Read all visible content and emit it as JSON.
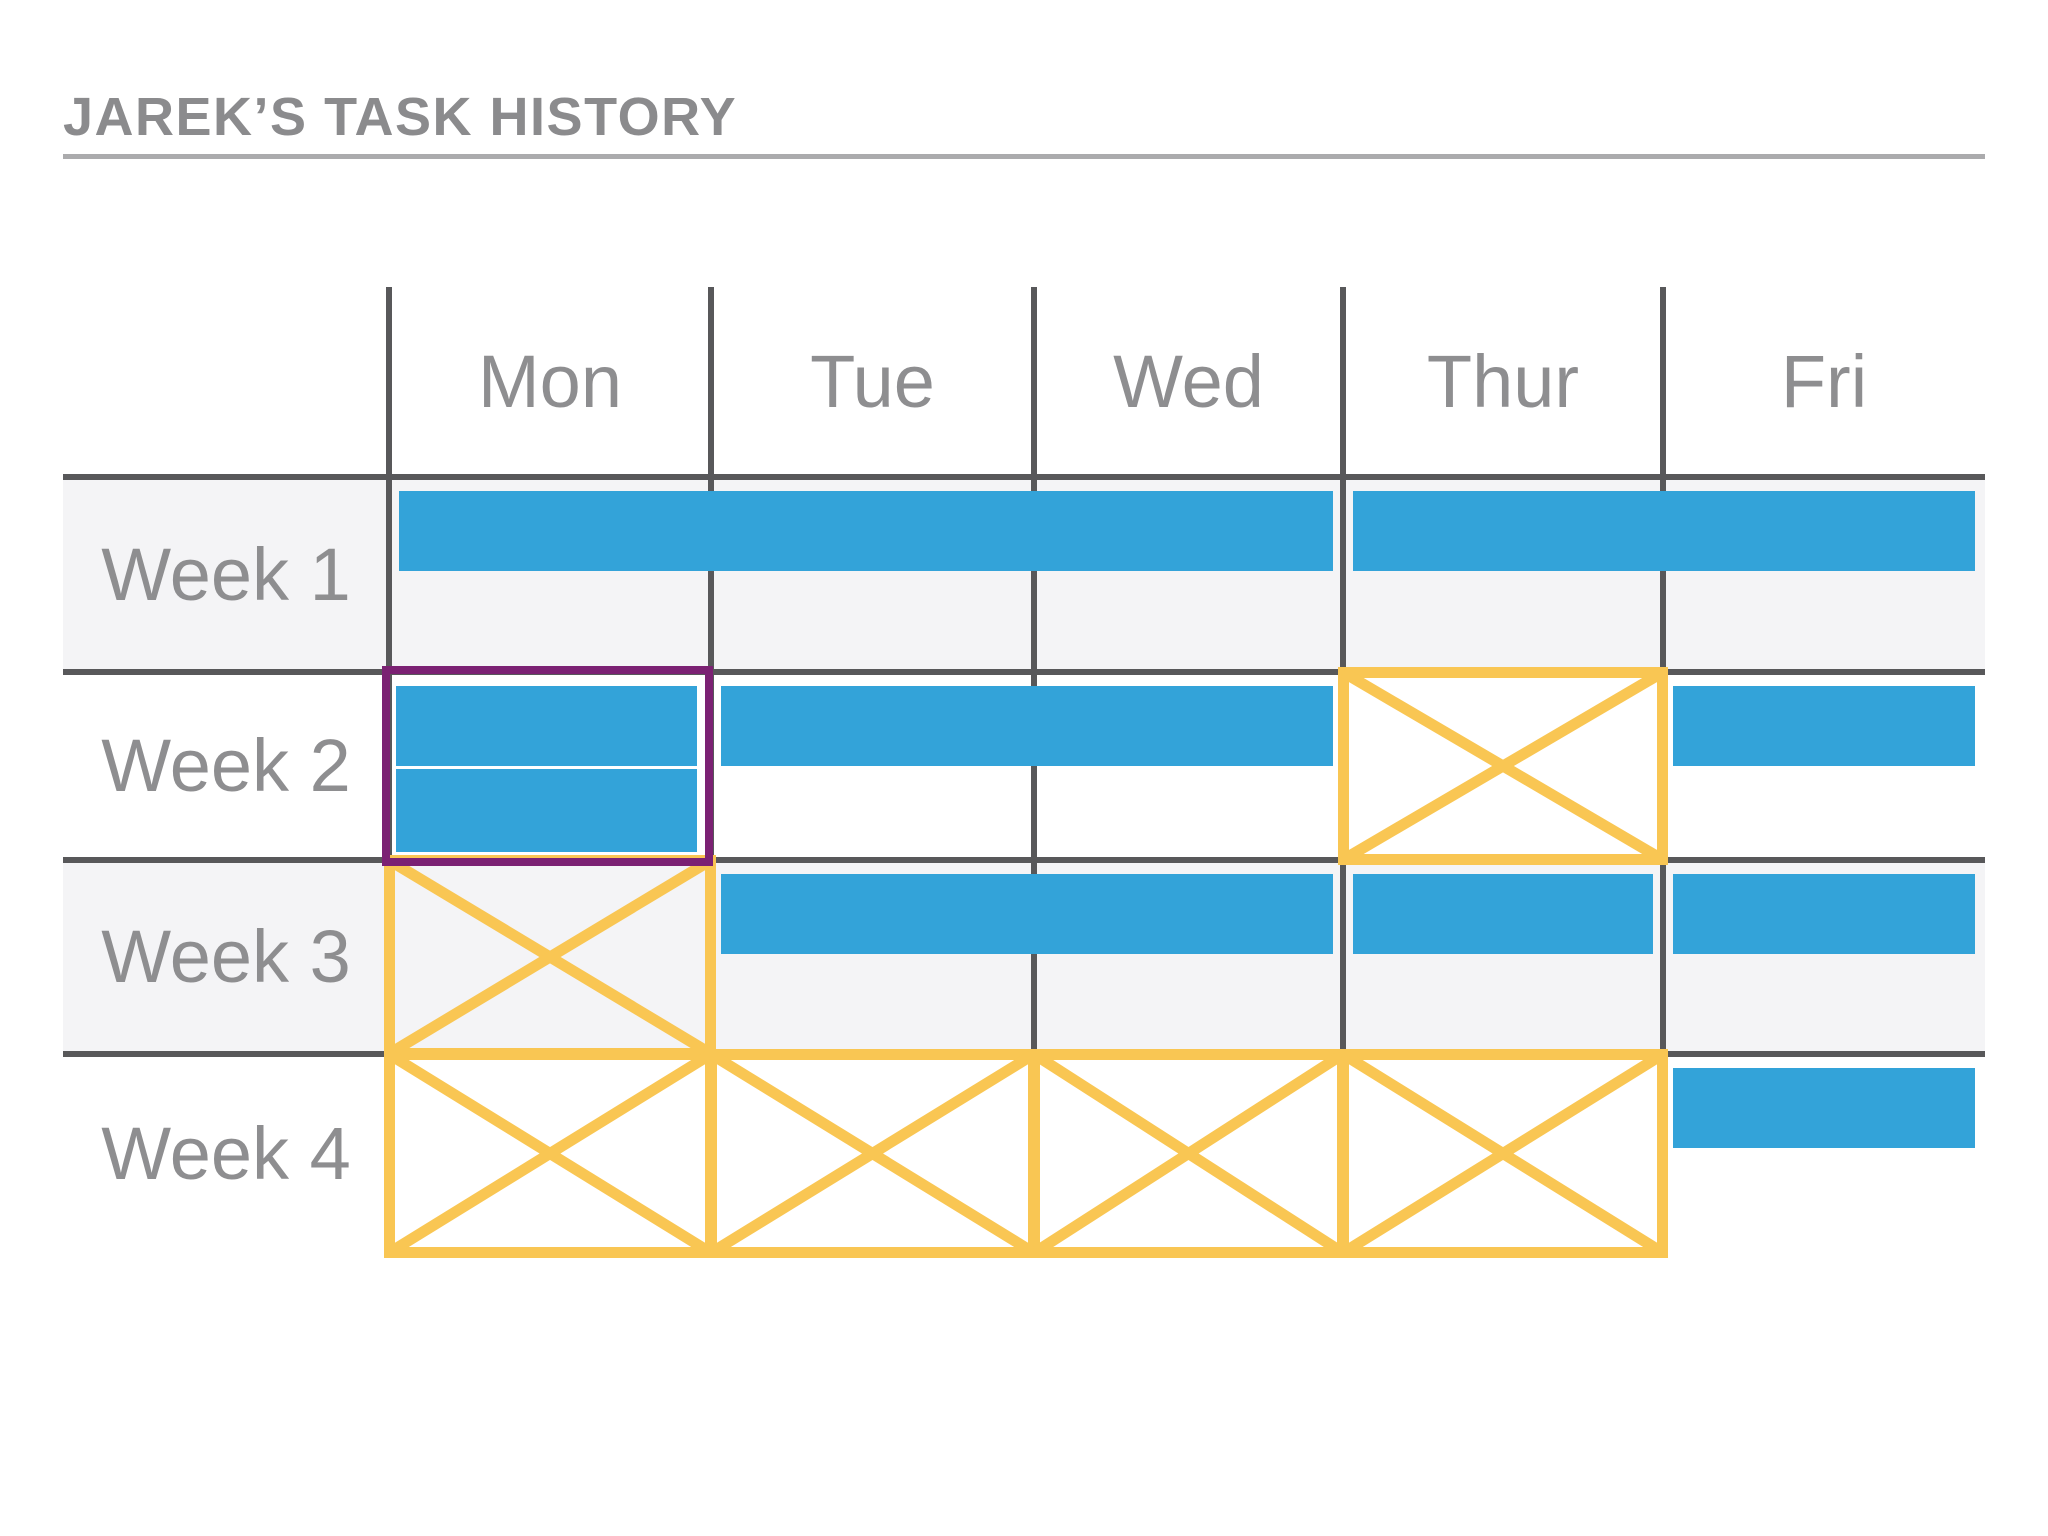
{
  "header": {
    "title": "JAREK’S TASK HISTORY"
  },
  "chart_data": {
    "type": "table",
    "title": "JAREK’S TASK HISTORY",
    "description_semantics": {
      "blue_bar": "task completed / task duration",
      "yellow_x": "missed day (no task)",
      "purple_outline": "highlighted cell with two tasks"
    },
    "columns": [
      "Mon",
      "Tue",
      "Wed",
      "Thur",
      "Fri"
    ],
    "rows": [
      {
        "label": "Week 1",
        "tasks": [
          {
            "days": [
              "Mon",
              "Wed"
            ],
            "lane": 0
          },
          {
            "days": [
              "Thur",
              "Fri"
            ],
            "lane": 0
          }
        ],
        "missed": [],
        "highlighted_cell": null
      },
      {
        "label": "Week 2",
        "tasks": [
          {
            "days": [
              "Mon",
              "Mon"
            ],
            "lane": 0,
            "in_highlight": true
          },
          {
            "days": [
              "Mon",
              "Mon"
            ],
            "lane": 1,
            "in_highlight": true
          },
          {
            "days": [
              "Tue",
              "Wed"
            ],
            "lane": 0
          },
          {
            "days": [
              "Fri",
              "Fri"
            ],
            "lane": 0
          }
        ],
        "missed": [
          "Thur"
        ],
        "highlighted_cell": "Mon"
      },
      {
        "label": "Week 3",
        "tasks": [
          {
            "days": [
              "Tue",
              "Wed"
            ],
            "lane": 0
          },
          {
            "days": [
              "Thur",
              "Thur"
            ],
            "lane": 0
          },
          {
            "days": [
              "Fri",
              "Fri"
            ],
            "lane": 0
          }
        ],
        "missed": [
          "Mon"
        ],
        "highlighted_cell": null
      },
      {
        "label": "Week 4",
        "tasks": [
          {
            "days": [
              "Fri",
              "Fri"
            ],
            "lane": 0
          }
        ],
        "missed": [
          "Mon",
          "Tue",
          "Wed",
          "Thur"
        ],
        "highlighted_cell": null
      }
    ],
    "legend_position": "none",
    "grid": true
  },
  "colors": {
    "task": "#33a3d9",
    "missed_outline": "#f9c653",
    "highlight_outline": "#7b2173",
    "grid_line": "#58585a",
    "row_shade": "#f4f4f6",
    "row_plain": "#ffffff",
    "label_text": "#8e8e90",
    "title_text": "#8b8b8d",
    "title_rule": "#ababad"
  }
}
